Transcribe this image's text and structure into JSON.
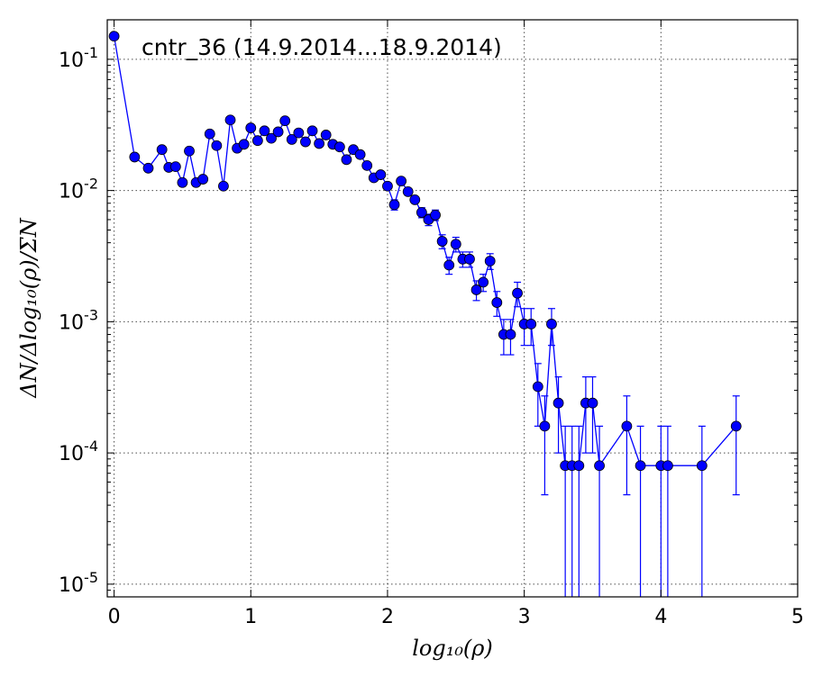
{
  "chart_data": {
    "type": "scatter",
    "title": "cntr_36 (14.9.2014...18.9.2014)",
    "xlabel": "log₁₀(ρ)",
    "ylabel": "ΔN/Δlog₁₀(ρ)/ΣN",
    "x_scale": "linear",
    "y_scale": "log",
    "xlim": [
      -0.05,
      5
    ],
    "ylim": [
      8e-06,
      0.2
    ],
    "x_ticks": [
      0,
      1,
      2,
      3,
      4,
      5
    ],
    "x_tick_labels": [
      "0",
      "1",
      "2",
      "3",
      "4",
      "5"
    ],
    "y_ticks": [
      1e-05,
      0.0001,
      0.001,
      0.01,
      0.1
    ],
    "y_tick_labels": [
      {
        "base": "10",
        "exp": "-5"
      },
      {
        "base": "10",
        "exp": "-4"
      },
      {
        "base": "10",
        "exp": "-3"
      },
      {
        "base": "10",
        "exp": "-2"
      },
      {
        "base": "10",
        "exp": "-1"
      }
    ],
    "grid": true,
    "marker_color": "#0000ff",
    "line_color": "#0000ff",
    "series": [
      {
        "points": [
          {
            "x": 0.0,
            "y": 0.15
          },
          {
            "x": 0.15,
            "y": 0.018
          },
          {
            "x": 0.25,
            "y": 0.0148
          },
          {
            "x": 0.35,
            "y": 0.0205
          },
          {
            "x": 0.4,
            "y": 0.015
          },
          {
            "x": 0.45,
            "y": 0.0152
          },
          {
            "x": 0.5,
            "y": 0.0115
          },
          {
            "x": 0.55,
            "y": 0.02
          },
          {
            "x": 0.6,
            "y": 0.0115
          },
          {
            "x": 0.65,
            "y": 0.0122
          },
          {
            "x": 0.7,
            "y": 0.027
          },
          {
            "x": 0.75,
            "y": 0.022
          },
          {
            "x": 0.8,
            "y": 0.0108
          },
          {
            "x": 0.85,
            "y": 0.0345
          },
          {
            "x": 0.9,
            "y": 0.021
          },
          {
            "x": 0.95,
            "y": 0.0225
          },
          {
            "x": 1.0,
            "y": 0.03
          },
          {
            "x": 1.05,
            "y": 0.024
          },
          {
            "x": 1.1,
            "y": 0.0285
          },
          {
            "x": 1.15,
            "y": 0.025
          },
          {
            "x": 1.2,
            "y": 0.028
          },
          {
            "x": 1.25,
            "y": 0.034
          },
          {
            "x": 1.3,
            "y": 0.0245
          },
          {
            "x": 1.35,
            "y": 0.0275
          },
          {
            "x": 1.4,
            "y": 0.0235
          },
          {
            "x": 1.45,
            "y": 0.0285
          },
          {
            "x": 1.5,
            "y": 0.0228
          },
          {
            "x": 1.55,
            "y": 0.0265
          },
          {
            "x": 1.6,
            "y": 0.0225
          },
          {
            "x": 1.65,
            "y": 0.0215
          },
          {
            "x": 1.7,
            "y": 0.0172
          },
          {
            "x": 1.75,
            "y": 0.0205
          },
          {
            "x": 1.8,
            "y": 0.0188
          },
          {
            "x": 1.85,
            "y": 0.0155
          },
          {
            "x": 1.9,
            "y": 0.0125
          },
          {
            "x": 1.95,
            "y": 0.0132
          },
          {
            "x": 2.0,
            "y": 0.0108
          },
          {
            "x": 2.05,
            "y": 0.0078,
            "err": 0.0007
          },
          {
            "x": 2.1,
            "y": 0.0118
          },
          {
            "x": 2.15,
            "y": 0.0098
          },
          {
            "x": 2.2,
            "y": 0.0085
          },
          {
            "x": 2.25,
            "y": 0.0068,
            "err": 0.0006
          },
          {
            "x": 2.3,
            "y": 0.006,
            "err": 0.0006
          },
          {
            "x": 2.35,
            "y": 0.0065,
            "err": 0.0006
          },
          {
            "x": 2.4,
            "y": 0.0041,
            "err": 0.0005
          },
          {
            "x": 2.45,
            "y": 0.0027,
            "err": 0.0004
          },
          {
            "x": 2.5,
            "y": 0.0039,
            "err": 0.0005
          },
          {
            "x": 2.55,
            "y": 0.003,
            "err": 0.0004
          },
          {
            "x": 2.6,
            "y": 0.003,
            "err": 0.0004
          },
          {
            "x": 2.65,
            "y": 0.00175,
            "err": 0.0003
          },
          {
            "x": 2.7,
            "y": 0.002,
            "err": 0.0003
          },
          {
            "x": 2.75,
            "y": 0.0029,
            "err": 0.0004
          },
          {
            "x": 2.8,
            "y": 0.0014,
            "err": 0.0003
          },
          {
            "x": 2.85,
            "y": 0.0008,
            "err": 0.00024
          },
          {
            "x": 2.9,
            "y": 0.0008,
            "err": 0.00024
          },
          {
            "x": 2.95,
            "y": 0.00165,
            "err": 0.00035
          },
          {
            "x": 3.0,
            "y": 0.00096,
            "err": 0.0003
          },
          {
            "x": 3.05,
            "y": 0.00096,
            "err": 0.0003
          },
          {
            "x": 3.1,
            "y": 0.00032,
            "err": 0.00016
          },
          {
            "x": 3.15,
            "y": 0.00016,
            "err": 0.000112
          },
          {
            "x": 3.2,
            "y": 0.00096,
            "err": 0.0003
          },
          {
            "x": 3.25,
            "y": 0.00024,
            "err": 0.00014
          },
          {
            "x": 3.3,
            "y": 8e-05,
            "err": 7.99e-05
          },
          {
            "x": 3.35,
            "y": 8e-05,
            "err": 7.99e-05
          },
          {
            "x": 3.4,
            "y": 8e-05,
            "err": 7.99e-05
          },
          {
            "x": 3.45,
            "y": 0.00024,
            "err": 0.00014
          },
          {
            "x": 3.5,
            "y": 0.00024,
            "err": 0.00014
          },
          {
            "x": 3.55,
            "y": 8e-05,
            "err": 7.99e-05
          },
          {
            "x": 3.75,
            "y": 0.00016,
            "err": 0.000112
          },
          {
            "x": 3.85,
            "y": 8e-05,
            "err": 7.99e-05
          },
          {
            "x": 4.0,
            "y": 8e-05,
            "err": 7.99e-05
          },
          {
            "x": 4.05,
            "y": 8e-05,
            "err": 7.99e-05
          },
          {
            "x": 4.3,
            "y": 8e-05,
            "err": 7.99e-05
          },
          {
            "x": 4.55,
            "y": 0.00016,
            "err": 0.000112
          }
        ]
      }
    ]
  }
}
